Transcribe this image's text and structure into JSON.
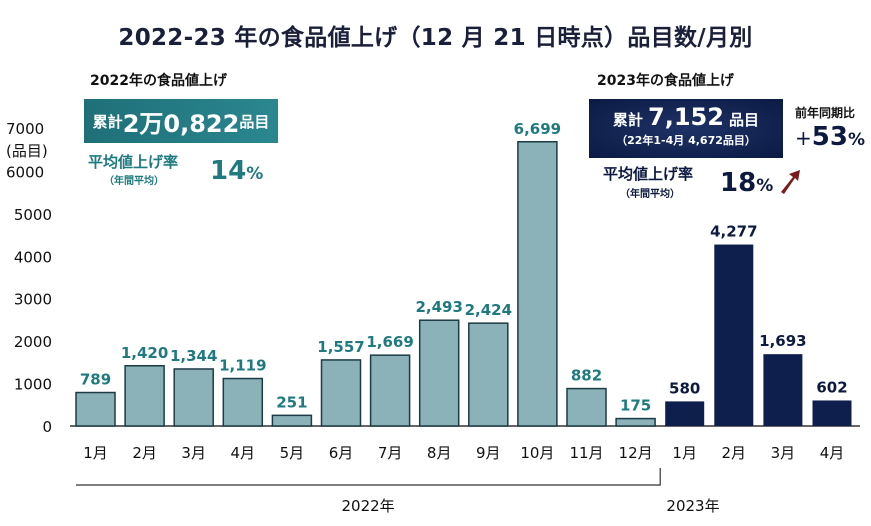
{
  "chart_data": {
    "type": "bar",
    "title": "2022-23 年の食品値上げ（12 月 21 日時点）品目数/月別",
    "xlabel": "",
    "ylabel": "(品目)",
    "ylim": [
      0,
      7000
    ],
    "yticks": [
      0,
      1000,
      2000,
      3000,
      4000,
      5000,
      6000,
      7000
    ],
    "ytick_labels": [
      "0",
      "1000",
      "2000",
      "3000",
      "4000",
      "5000",
      "6000",
      "7000"
    ],
    "grid": false,
    "categories": [
      "1月",
      "2月",
      "3月",
      "4月",
      "5月",
      "6月",
      "7月",
      "8月",
      "9月",
      "10月",
      "11月",
      "12月",
      "1月",
      "2月",
      "3月",
      "4月"
    ],
    "groups": [
      {
        "name": "2022年",
        "color": "#8bb1b9",
        "text_color": "#1f7a80",
        "start": 0,
        "count": 12
      },
      {
        "name": "2023年",
        "color": "#0e1f4d",
        "text_color": "#0d1a40",
        "start": 12,
        "count": 4
      }
    ],
    "values": [
      789,
      1420,
      1344,
      1119,
      251,
      1557,
      1669,
      2493,
      2424,
      6699,
      882,
      175,
      580,
      4277,
      1693,
      602
    ],
    "value_labels": [
      "789",
      "1,420",
      "1,344",
      "1,119",
      "251",
      "1,557",
      "1,669",
      "2,493",
      "2,424",
      "6,699",
      "882",
      "175",
      "580",
      "4,277",
      "1,693",
      "602"
    ]
  },
  "unit_label": "(品目)",
  "summary_2022": {
    "heading": "2022年の食品値上げ",
    "total_prefix": "累計",
    "total_value": "2万0,822",
    "total_suffix": "品目",
    "rate_label": "平均値上げ率",
    "rate_sub": "（年間平均）",
    "rate_value": "14",
    "rate_unit": "%"
  },
  "summary_2023": {
    "heading": "2023年の食品値上げ",
    "total_prefix": "累計",
    "total_value": "7,152",
    "total_suffix": "品目",
    "comparison": "（22年1-4月 4,672品目）",
    "rate_label": "平均値上げ率",
    "rate_sub": "（年間平均）",
    "rate_value": "18",
    "rate_unit": "%",
    "yoy_label": "前年同期比",
    "yoy_sign": "+",
    "yoy_value": "53",
    "yoy_unit": "%",
    "arrow_color": "#7a1a1a"
  }
}
